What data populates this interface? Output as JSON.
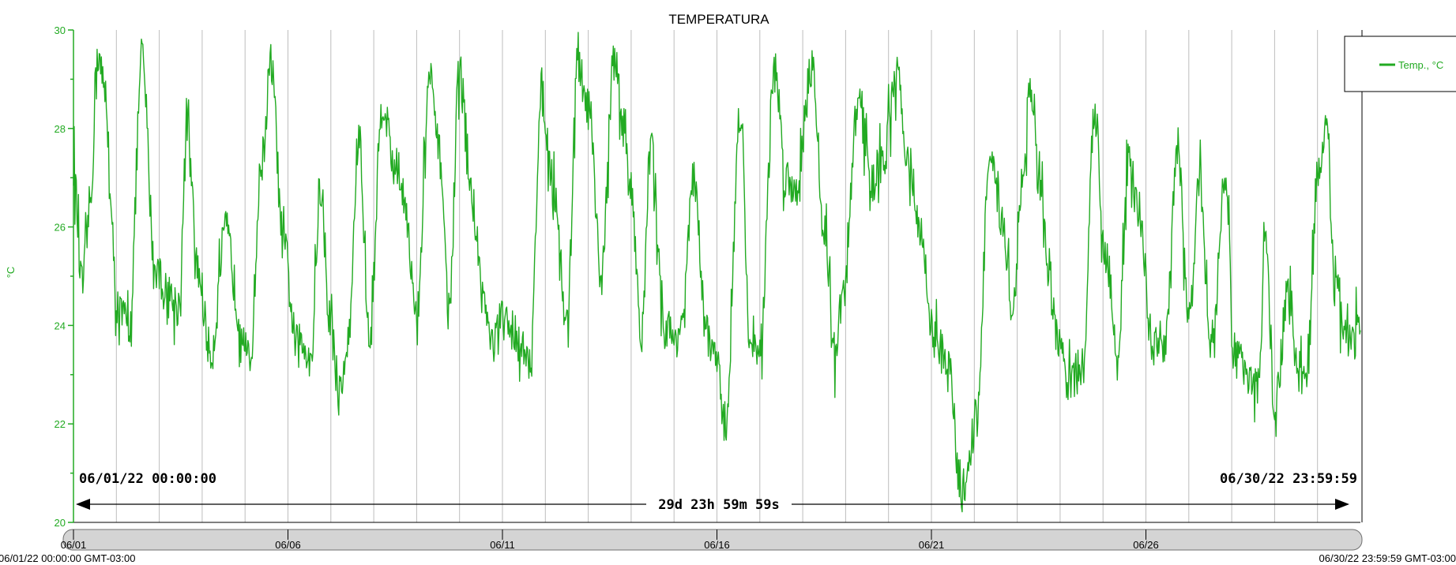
{
  "chart_data": {
    "type": "line",
    "title": "TEMPERATURA",
    "ylabel": "°C",
    "ylim": [
      20,
      30
    ],
    "yticks": [
      20,
      22,
      24,
      26,
      28,
      30
    ],
    "xlim": [
      "2022-06-01T00:00:00",
      "2022-06-30T23:59:59"
    ],
    "xtick_labels": [
      "06/01",
      "06/06",
      "06/11",
      "06/16",
      "06/21",
      "06/26"
    ],
    "grid": "vertical",
    "legend_position": "right",
    "series": [
      {
        "name": "Temp., °C",
        "color": "#22aa22",
        "x_day": [
          0,
          0.2,
          0.4,
          0.55,
          0.75,
          0.9,
          1.0,
          1.1,
          1.3,
          1.6,
          1.9,
          2.2,
          2.45,
          2.65,
          2.9,
          3.2,
          3.55,
          3.9,
          4.1,
          4.4,
          4.6,
          4.9,
          5.2,
          5.55,
          5.75,
          5.95,
          6.2,
          6.4,
          6.65,
          6.9,
          7.2,
          7.5,
          7.7,
          8.0,
          8.3,
          8.55,
          8.75,
          9.0,
          9.3,
          9.55,
          9.75,
          10.0,
          10.3,
          10.65,
          10.9,
          11.2,
          11.5,
          11.75,
          12.0,
          12.3,
          12.6,
          12.85,
          13.0,
          13.25,
          13.45,
          13.8,
          14.0,
          14.2,
          14.45,
          14.75,
          14.95,
          15.2,
          15.55,
          15.75,
          16.0,
          16.35,
          16.6,
          16.85,
          17.2,
          17.5,
          17.75,
          17.95,
          18.3,
          18.6,
          18.85,
          19.2,
          19.5,
          19.75,
          20.05,
          20.4,
          20.7,
          21.05,
          21.35,
          21.65,
          21.9,
          22.1,
          22.3,
          22.55,
          22.75,
          22.95,
          23.2,
          23.55,
          23.8,
          24.05,
          24.35,
          24.6,
          24.85,
          25.15,
          25.45,
          25.75,
          26.0,
          26.25,
          26.55,
          26.85,
          27.05,
          27.35,
          27.6,
          27.8,
          28.0,
          28.3,
          28.55,
          28.75,
          29.0,
          29.2,
          29.4,
          29.6,
          29.8,
          30.0
        ],
        "y": [
          27.2,
          24.8,
          26.5,
          29.5,
          28.7,
          25.8,
          24.5,
          24.2,
          24.0,
          29.4,
          25.2,
          24.6,
          24.4,
          27.9,
          25.1,
          23.4,
          25.9,
          24.1,
          23.2,
          27.4,
          29.3,
          25.6,
          23.6,
          23.5,
          26.8,
          24.3,
          22.6,
          23.6,
          27.8,
          23.7,
          28.5,
          27.3,
          26.7,
          24.1,
          29.0,
          27.4,
          24.3,
          29.2,
          26.5,
          24.6,
          23.6,
          24.1,
          23.9,
          23.1,
          28.8,
          26.8,
          24.0,
          29.3,
          28.4,
          25.0,
          29.4,
          28.0,
          26.7,
          23.8,
          27.6,
          24.0,
          23.7,
          24.1,
          27.0,
          23.9,
          23.4,
          22.0,
          28.4,
          23.9,
          23.5,
          29.3,
          27.0,
          26.8,
          29.3,
          26.0,
          23.4,
          24.6,
          28.7,
          26.9,
          27.3,
          29.0,
          27.2,
          25.8,
          23.8,
          23.1,
          20.6,
          22.0,
          27.3,
          26.2,
          24.3,
          26.7,
          28.8,
          26.6,
          24.7,
          23.7,
          22.8,
          23.2,
          28.4,
          25.5,
          23.6,
          27.2,
          26.3,
          23.6,
          23.7,
          27.6,
          24.0,
          27.0,
          23.5,
          27.2,
          23.4,
          23.2,
          22.7,
          25.6,
          22.2,
          24.6,
          23.1,
          23.0,
          27.0,
          28.0,
          25.0,
          23.9,
          23.7,
          23.9
        ]
      }
    ],
    "range_start_label": "06/01/22 00:00:00",
    "range_end_label": "06/30/22 23:59:59",
    "duration_label": "29d 23h 59m 59s",
    "axis_start_label": "06/01/22 00:00:00 GMT-03:00",
    "axis_end_label": "06/30/22 23:59:59 GMT-03:00"
  }
}
